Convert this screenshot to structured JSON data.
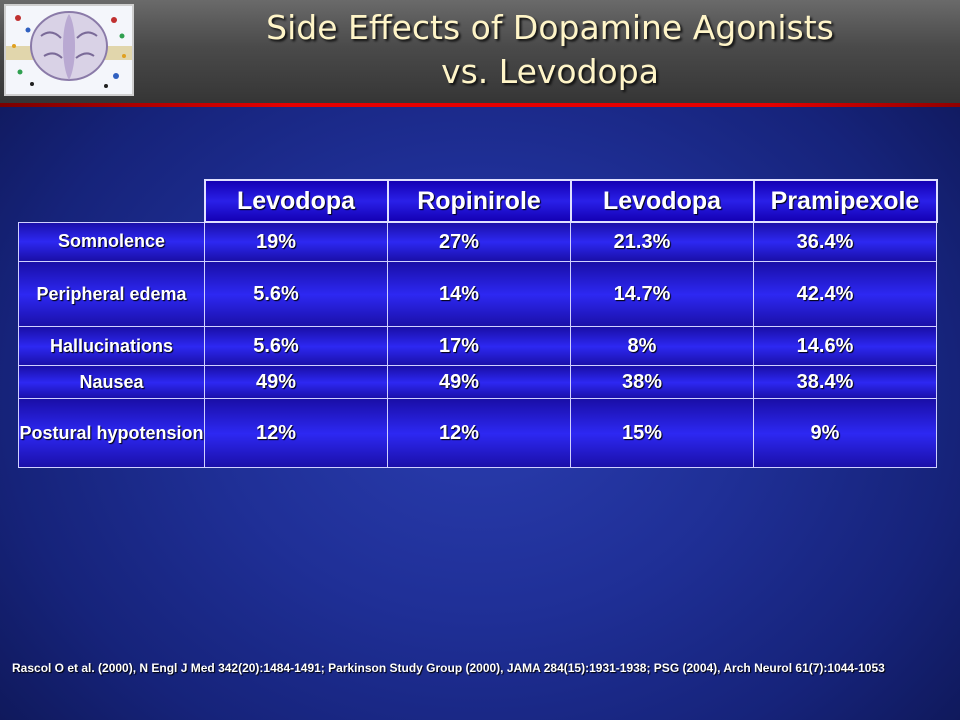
{
  "header": {
    "title_line1": "Side Effects of Dopamine Agonists",
    "title_line2": "vs. Levodopa",
    "logo_icon": "brain-neurotransmitter-logo-icon"
  },
  "table": {
    "columns": [
      "Levodopa",
      "Ropinirole",
      "Levodopa",
      "Pramipexole"
    ],
    "rows": [
      {
        "label": "Somnolence",
        "values": [
          "19%",
          "27%",
          "21.3%",
          "36.4%"
        ]
      },
      {
        "label": "Peripheral edema",
        "values": [
          "5.6%",
          "14%",
          "14.7%",
          "42.4%"
        ]
      },
      {
        "label": "Hallucinations",
        "values": [
          "5.6%",
          "17%",
          "8%",
          "14.6%"
        ]
      },
      {
        "label": "Nausea",
        "values": [
          "49%",
          "49%",
          "38%",
          "38.4%"
        ]
      },
      {
        "label": "Postural hypotension",
        "values": [
          "12%",
          "12%",
          "15%",
          "9%"
        ]
      }
    ]
  },
  "footer": {
    "reference": "Rascol O et al. (2000), N Engl J Med 342(20):1484-1491; Parkinson Study Group (2000), JAMA 284(15):1931-1938; PSG (2004), Arch Neurol 61(7):1044-1053"
  },
  "colors": {
    "background": "#1f2f96",
    "cell": "#2d28f2",
    "accent_line": "#e60000",
    "title": "#fff5c8"
  }
}
